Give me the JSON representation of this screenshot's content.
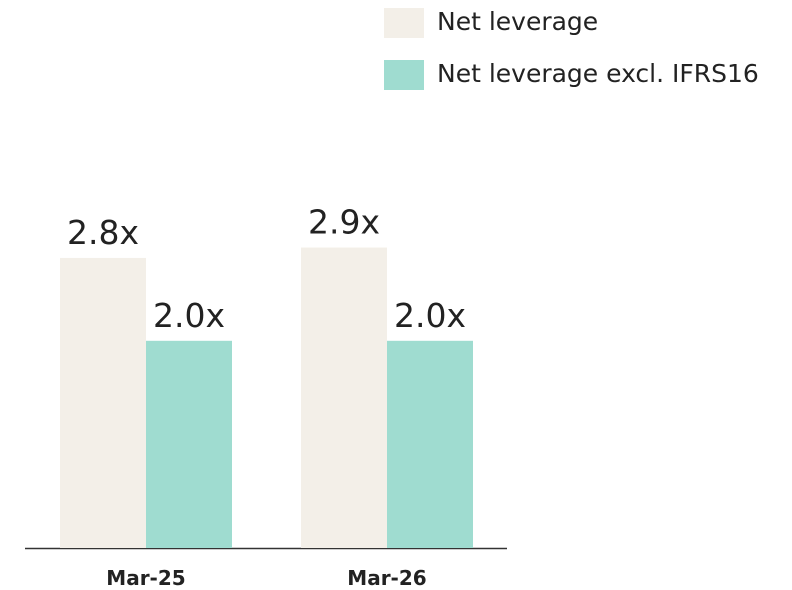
{
  "chart_data": {
    "type": "bar",
    "categories": [
      "Mar-25",
      "Mar-26"
    ],
    "series": [
      {
        "name": "Net leverage",
        "color": "#f3efe8",
        "values": [
          2.8,
          2.9
        ],
        "value_labels": [
          "2.8x",
          "2.9x"
        ]
      },
      {
        "name": "Net leverage excl. IFRS16",
        "color": "#9fdcd0",
        "values": [
          2.0,
          2.0
        ],
        "value_labels": [
          "2.0x",
          "2.0x"
        ]
      }
    ],
    "legend": "top-right"
  }
}
